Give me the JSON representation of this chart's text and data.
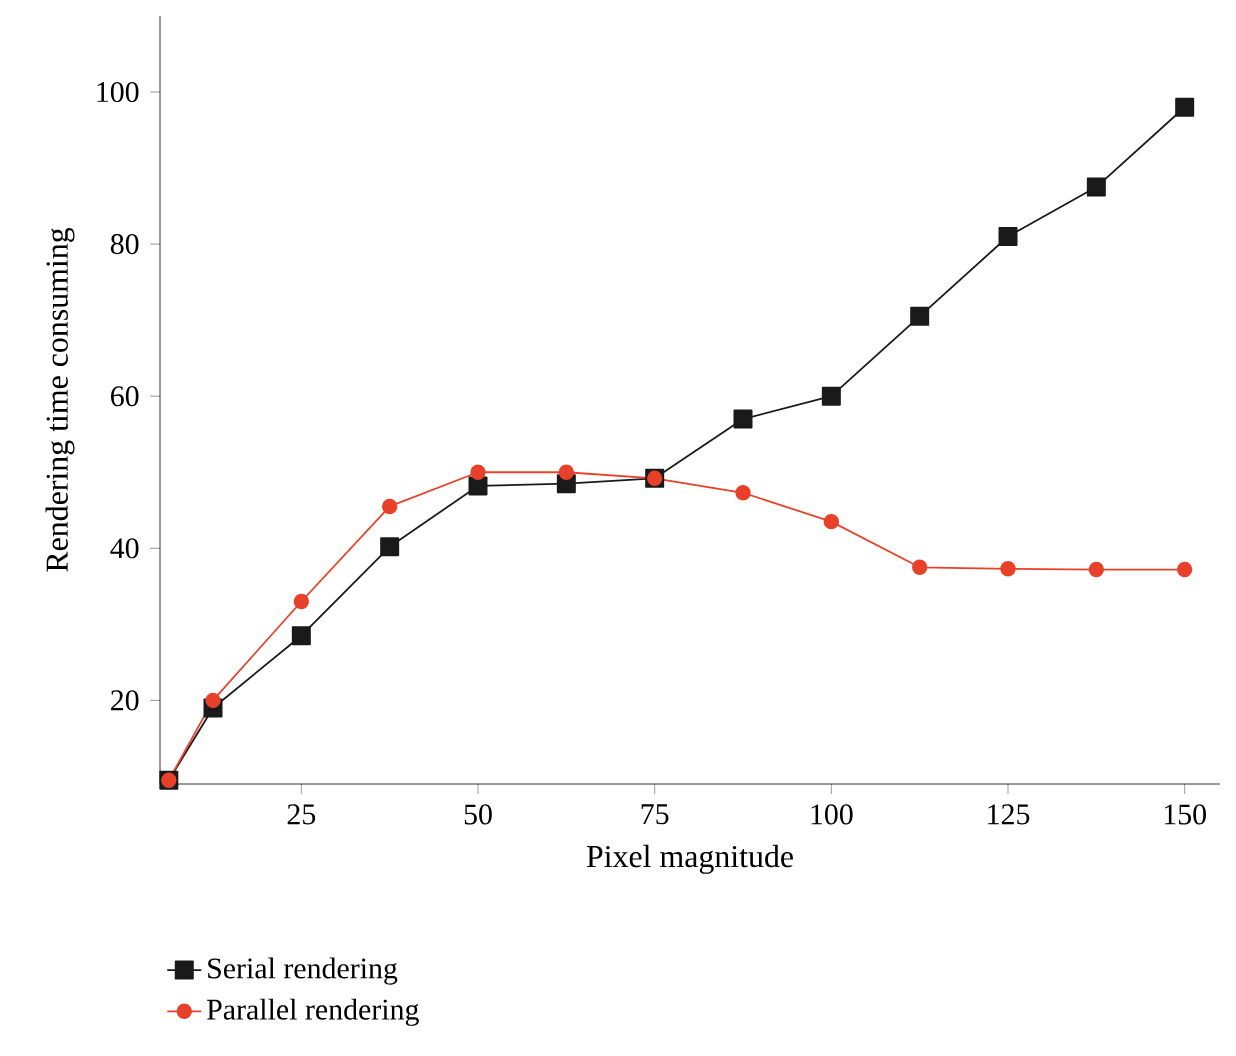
{
  "chart_data": {
    "type": "line",
    "xlabel": "Pixel magnitude",
    "ylabel": "Rendering time consuming",
    "x": [
      6.25,
      12.5,
      25,
      37.5,
      50,
      62.5,
      75,
      87.5,
      100,
      112.5,
      125,
      137.5,
      150
    ],
    "series": [
      {
        "name": "Serial rendering",
        "color": "#1a1a1a",
        "marker": "square",
        "values": [
          9.5,
          19,
          28.5,
          40.2,
          48.2,
          48.5,
          49.2,
          57,
          60,
          70.5,
          81,
          87.5,
          98
        ]
      },
      {
        "name": "Parallel rendering",
        "color": "#e8412a",
        "marker": "circle",
        "values": [
          9.5,
          20,
          33,
          45.5,
          50,
          50,
          49.2,
          47.3,
          43.5,
          37.5,
          37.3,
          37.2,
          37.2
        ]
      }
    ],
    "xlim": [
      5,
      155
    ],
    "ylim": [
      9,
      110
    ],
    "xticks": [
      25,
      50,
      75,
      100,
      125,
      150
    ],
    "yticks": [
      20,
      40,
      60,
      80,
      100
    ],
    "grid": false,
    "legend": "bottom",
    "line_style": "solid"
  }
}
